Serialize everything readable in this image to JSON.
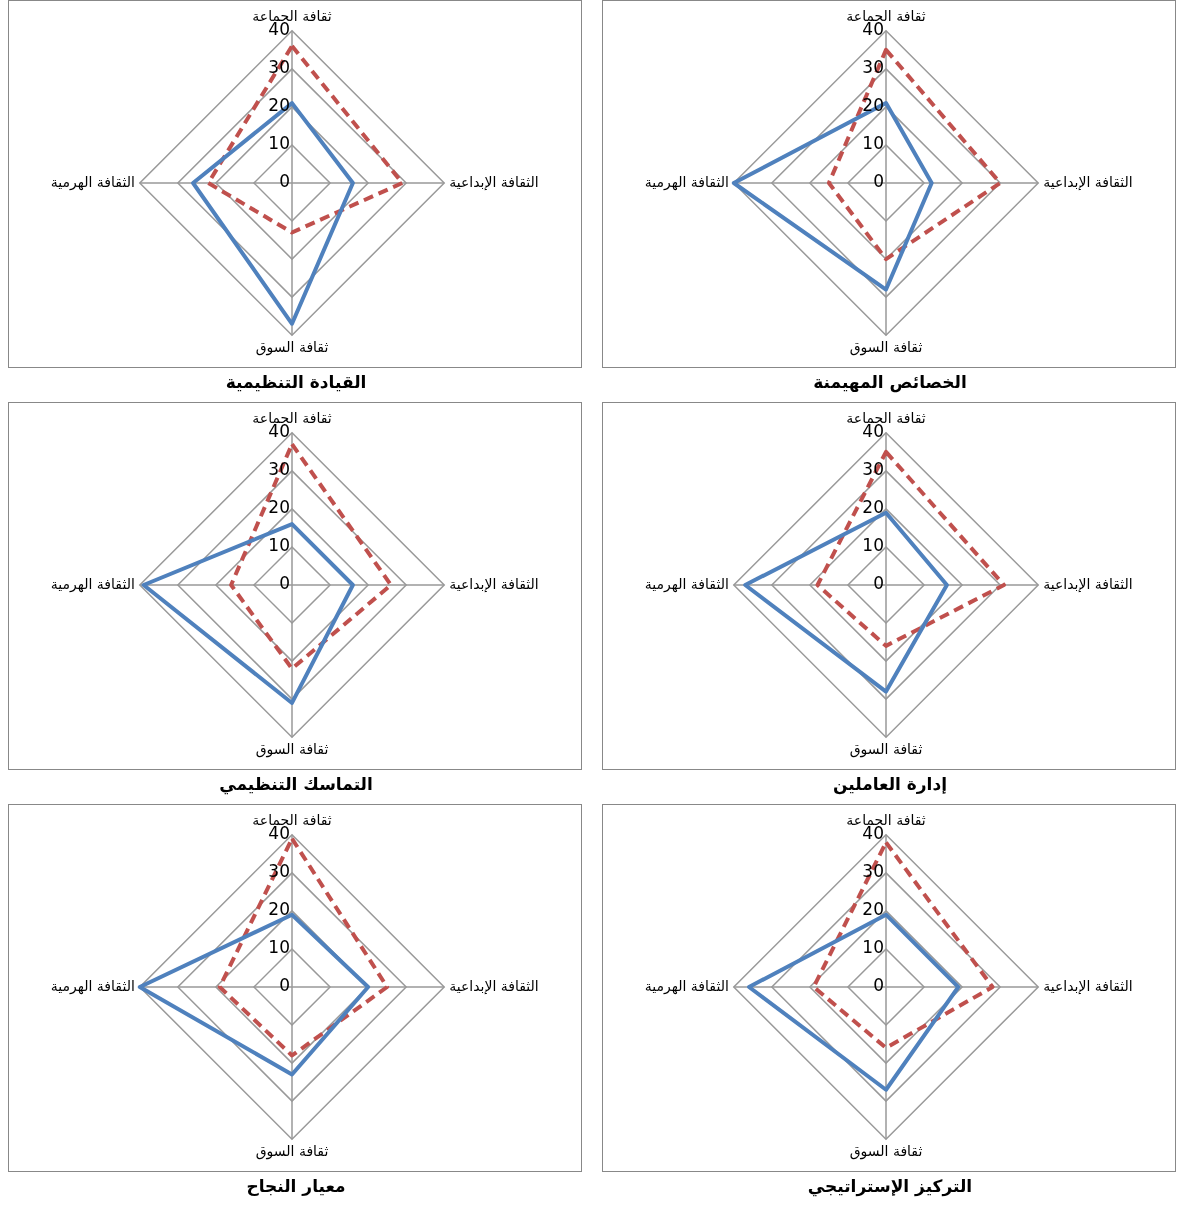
{
  "chart_data": [
    {
      "type": "radar",
      "title": "القيادة التنظيمية",
      "categories": [
        "ثقافة الجماعة",
        "الثقافة الإبداعية",
        "ثقافة السوق",
        "الثقافة الهرمية"
      ],
      "ylim": [
        0,
        40
      ],
      "yticks": [
        0,
        10,
        20,
        30,
        40
      ],
      "grid": true,
      "legend": false,
      "marker": "none",
      "series": [
        {
          "color": "#4f81bd",
          "line_style": "solid",
          "values": [
            21,
            16,
            37,
            26
          ]
        },
        {
          "color": "#c0504d",
          "line_style": "dashed",
          "values": [
            36,
            29,
            13,
            22
          ]
        }
      ]
    },
    {
      "type": "radar",
      "title": "الخصائص المهيمنة",
      "categories": [
        "ثقافة الجماعة",
        "الثقافة الإبداعية",
        "ثقافة السوق",
        "الثقافة الهرمية"
      ],
      "ylim": [
        0,
        40
      ],
      "yticks": [
        0,
        10,
        20,
        30,
        40
      ],
      "grid": true,
      "legend": false,
      "marker": "none",
      "series": [
        {
          "color": "#4f81bd",
          "line_style": "solid",
          "values": [
            21,
            12,
            28,
            40
          ]
        },
        {
          "color": "#c0504d",
          "line_style": "dashed",
          "values": [
            35,
            30,
            20,
            15
          ]
        }
      ]
    },
    {
      "type": "radar",
      "title": "التماسك التنظيمي",
      "categories": [
        "ثقافة الجماعة",
        "الثقافة الإبداعية",
        "ثقافة السوق",
        "الثقافة الهرمية"
      ],
      "ylim": [
        0,
        40
      ],
      "yticks": [
        0,
        10,
        20,
        30,
        40
      ],
      "grid": true,
      "legend": false,
      "marker": "none",
      "series": [
        {
          "color": "#4f81bd",
          "line_style": "solid",
          "values": [
            16,
            16,
            31,
            39
          ]
        },
        {
          "color": "#c0504d",
          "line_style": "dashed",
          "values": [
            37,
            26,
            22,
            16
          ]
        }
      ]
    },
    {
      "type": "radar",
      "title": "إدارة العاملين",
      "categories": [
        "ثقافة الجماعة",
        "الثقافة الإبداعية",
        "ثقافة السوق",
        "الثقافة الهرمية"
      ],
      "ylim": [
        0,
        40
      ],
      "yticks": [
        0,
        10,
        20,
        30,
        40
      ],
      "grid": true,
      "legend": false,
      "marker": "none",
      "series": [
        {
          "color": "#4f81bd",
          "line_style": "solid",
          "values": [
            19,
            16,
            28,
            37
          ]
        },
        {
          "color": "#c0504d",
          "line_style": "dashed",
          "values": [
            35,
            31,
            16,
            18
          ]
        }
      ]
    },
    {
      "type": "radar",
      "title": "معيار النجاح",
      "categories": [
        "ثقافة الجماعة",
        "الثقافة الإبداعية",
        "ثقافة السوق",
        "الثقافة الهرمية"
      ],
      "ylim": [
        0,
        40
      ],
      "yticks": [
        0,
        10,
        20,
        30,
        40
      ],
      "grid": true,
      "legend": false,
      "marker": "none",
      "series": [
        {
          "color": "#4f81bd",
          "line_style": "solid",
          "values": [
            19,
            20,
            23,
            40
          ]
        },
        {
          "color": "#c0504d",
          "line_style": "dashed",
          "values": [
            39,
            25,
            18,
            19
          ]
        }
      ]
    },
    {
      "type": "radar",
      "title": "التركيز الإستراتيجي",
      "categories": [
        "ثقافة الجماعة",
        "الثقافة الإبداعية",
        "ثقافة السوق",
        "الثقافة الهرمية"
      ],
      "ylim": [
        0,
        40
      ],
      "yticks": [
        0,
        10,
        20,
        30,
        40
      ],
      "grid": true,
      "legend": false,
      "marker": "none",
      "series": [
        {
          "color": "#4f81bd",
          "line_style": "solid",
          "values": [
            19,
            19,
            27,
            36
          ]
        },
        {
          "color": "#c0504d",
          "line_style": "dashed",
          "values": [
            38,
            28,
            16,
            19
          ]
        }
      ]
    }
  ]
}
